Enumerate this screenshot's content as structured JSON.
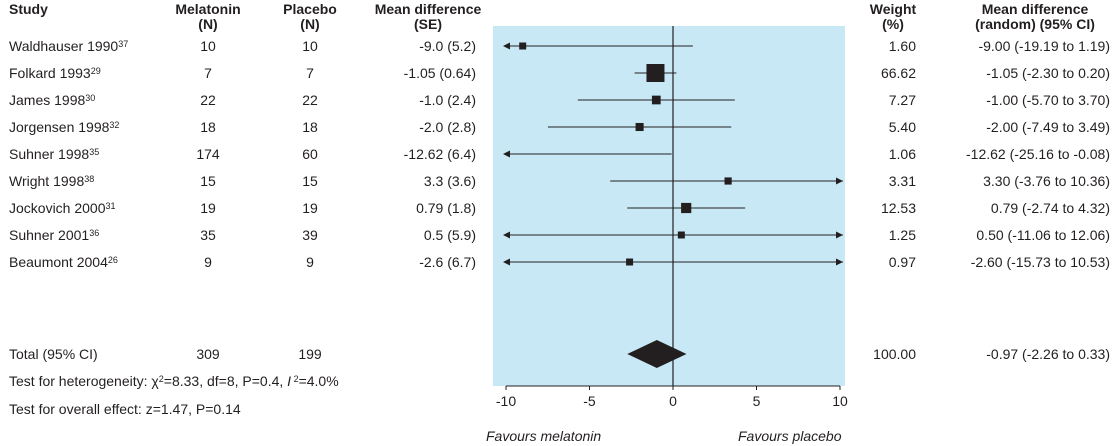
{
  "headers": {
    "study": "Study",
    "melatonin": "Melatonin",
    "placebo": "Placebo",
    "n": "(N)",
    "mean_diff": "Mean difference",
    "se": "(SE)",
    "weight": "Weight",
    "pct": "(%)",
    "md_random": "Mean difference",
    "ci": "(random) (95% CI)"
  },
  "studies": [
    {
      "name": "Waldhauser 1990",
      "ref": "37",
      "mel": "10",
      "pla": "10",
      "md": "-9.0 (5.2)",
      "weight": "1.60",
      "ci": "-9.00 (-19.19 to 1.19)"
    },
    {
      "name": "Folkard 1993",
      "ref": "29",
      "mel": "7",
      "pla": "7",
      "md": "-1.05 (0.64)",
      "weight": "66.62",
      "ci": "-1.05 (-2.30 to 0.20)"
    },
    {
      "name": "James 1998",
      "ref": "30",
      "mel": "22",
      "pla": "22",
      "md": "-1.0 (2.4)",
      "weight": "7.27",
      "ci": "-1.00 (-5.70 to 3.70)"
    },
    {
      "name": "Jorgensen 1998",
      "ref": "32",
      "mel": "18",
      "pla": "18",
      "md": "-2.0 (2.8)",
      "weight": "5.40",
      "ci": "-2.00 (-7.49 to 3.49)"
    },
    {
      "name": "Suhner 1998",
      "ref": "35",
      "mel": "174",
      "pla": "60",
      "md": "-12.62 (6.4)",
      "weight": "1.06",
      "ci": "-12.62 (-25.16 to -0.08)"
    },
    {
      "name": "Wright 1998",
      "ref": "38",
      "mel": "15",
      "pla": "15",
      "md": "3.3 (3.6)",
      "weight": "3.31",
      "ci": "3.30 (-3.76 to 10.36)"
    },
    {
      "name": "Jockovich 2000",
      "ref": "31",
      "mel": "19",
      "pla": "19",
      "md": "0.79 (1.8)",
      "weight": "12.53",
      "ci": "0.79 (-2.74 to 4.32)"
    },
    {
      "name": "Suhner 2001",
      "ref": "36",
      "mel": "35",
      "pla": "39",
      "md": "0.5 (5.9)",
      "weight": "1.25",
      "ci": "0.50 (-11.06 to 12.06)"
    },
    {
      "name": "Beaumont 2004",
      "ref": "26",
      "mel": "9",
      "pla": "9",
      "md": "-2.6 (6.7)",
      "weight": "0.97",
      "ci": "-2.60 (-15.73 to 10.53)"
    }
  ],
  "total": {
    "name": "Total (95% CI)",
    "mel": "309",
    "pla": "199",
    "weight": "100.00",
    "ci": "-0.97 (-2.26 to 0.33)"
  },
  "heterogeneity": {
    "prefix": "Test for heterogeneity: ",
    "chi": "χ",
    "chi_sup": "2",
    "rest1": "=8.33, df=8, P=0.4, ",
    "i": "I",
    "i_sup": " 2",
    "rest2": "=4.0%"
  },
  "overall_effect": "Test for overall effect: z=1.47, P=0.14",
  "favours": {
    "left": "Favours melatonin",
    "right": "Favours placebo"
  },
  "colors": {
    "plot_bg": "#c8e8f6",
    "marker": "#231f20",
    "text": "#231f20"
  },
  "chart_data": {
    "type": "forest",
    "xlim": [
      -10,
      10
    ],
    "xticks": [
      "-10",
      "-5",
      "0",
      "5",
      "10"
    ],
    "xtick_values": [
      -10,
      -5,
      0,
      5,
      10
    ],
    "grid": false,
    "estimates": [
      {
        "est": -9.0,
        "lo": -19.19,
        "hi": 1.19,
        "weight": 1.6
      },
      {
        "est": -1.05,
        "lo": -2.3,
        "hi": 0.2,
        "weight": 66.62
      },
      {
        "est": -1.0,
        "lo": -5.7,
        "hi": 3.7,
        "weight": 7.27
      },
      {
        "est": -2.0,
        "lo": -7.49,
        "hi": 3.49,
        "weight": 5.4
      },
      {
        "est": -12.62,
        "lo": -25.16,
        "hi": -0.08,
        "weight": 1.06
      },
      {
        "est": 3.3,
        "lo": -3.76,
        "hi": 10.36,
        "weight": 3.31
      },
      {
        "est": 0.79,
        "lo": -2.74,
        "hi": 4.32,
        "weight": 12.53
      },
      {
        "est": 0.5,
        "lo": -11.06,
        "hi": 12.06,
        "weight": 1.25
      },
      {
        "est": -2.6,
        "lo": -15.73,
        "hi": 10.53,
        "weight": 0.97
      }
    ],
    "pooled": {
      "est": -0.97,
      "lo": -2.26,
      "hi": 0.33
    }
  }
}
